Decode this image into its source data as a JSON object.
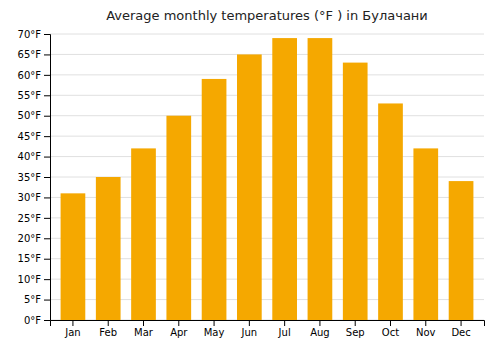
{
  "chart_data": {
    "type": "bar",
    "title": "Average monthly temperatures (°F ) in Булачани",
    "categories": [
      "Jan",
      "Feb",
      "Mar",
      "Apr",
      "May",
      "Jun",
      "Jul",
      "Aug",
      "Sep",
      "Oct",
      "Nov",
      "Dec"
    ],
    "values": [
      31,
      35,
      42,
      50,
      59,
      65,
      69,
      69,
      63,
      53,
      42,
      34
    ],
    "color": "#F5A800",
    "ylim": [
      0,
      70
    ],
    "yticks": [
      {
        "value": 0,
        "label": "0°F"
      },
      {
        "value": 5,
        "label": "5°F"
      },
      {
        "value": 10,
        "label": "10°F"
      },
      {
        "value": 15,
        "label": "15°F"
      },
      {
        "value": 20,
        "label": "20°F"
      },
      {
        "value": 25,
        "label": "25°F"
      },
      {
        "value": 30,
        "label": "30°F"
      },
      {
        "value": 35,
        "label": "35°F"
      },
      {
        "value": 40,
        "label": "40°F"
      },
      {
        "value": 45,
        "label": "45°F"
      },
      {
        "value": 50,
        "label": "50°F"
      },
      {
        "value": 55,
        "label": "55°F"
      },
      {
        "value": 60,
        "label": "60°F"
      },
      {
        "value": 65,
        "label": "65°F"
      },
      {
        "value": 70,
        "label": "70°F"
      }
    ],
    "grid": true
  }
}
